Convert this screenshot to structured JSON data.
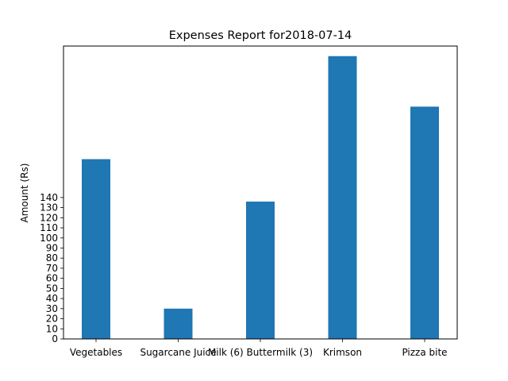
{
  "chart_data": {
    "type": "bar",
    "title": "Expenses Report for2018-07-14",
    "xlabel": "",
    "ylabel": "Amount (Rs)",
    "categories": [
      "Vegetables",
      "Sugarcane Juice",
      "Milk (6) Buttermilk (3)",
      "Krimson",
      "Pizza bite"
    ],
    "values": [
      178,
      30,
      136,
      280,
      230
    ],
    "ylim": [
      0,
      290
    ],
    "yticks": [
      0,
      10,
      20,
      30,
      40,
      50,
      60,
      70,
      80,
      90,
      100,
      110,
      120,
      130,
      140
    ],
    "bar_color": "#1f77b4",
    "grid": false,
    "legend": "none"
  }
}
